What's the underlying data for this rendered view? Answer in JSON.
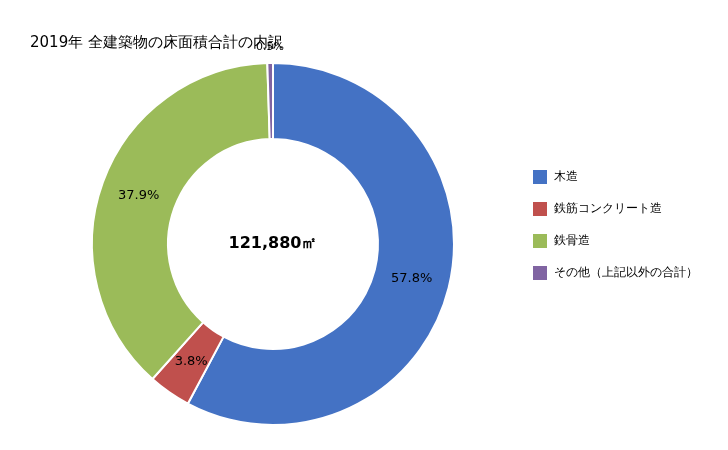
{
  "chart_data": {
    "type": "doughnut",
    "title": "2019年 全建築物の床面積合計の内訳",
    "annotations": [
      "121,880㎡"
    ],
    "categories": [
      "木造",
      "鉄筋コンクリート造",
      "鉄骨造",
      "その他（上記以外の合計）"
    ],
    "values": [
      57.8,
      3.8,
      37.9,
      0.5
    ],
    "value_labels": [
      "57.8%",
      "3.8%",
      "37.9%",
      "0.5%"
    ],
    "colors": [
      "#4472C4",
      "#C0504D",
      "#9BBB59",
      "#8064A2"
    ],
    "data_labels": true,
    "legend": "right"
  }
}
